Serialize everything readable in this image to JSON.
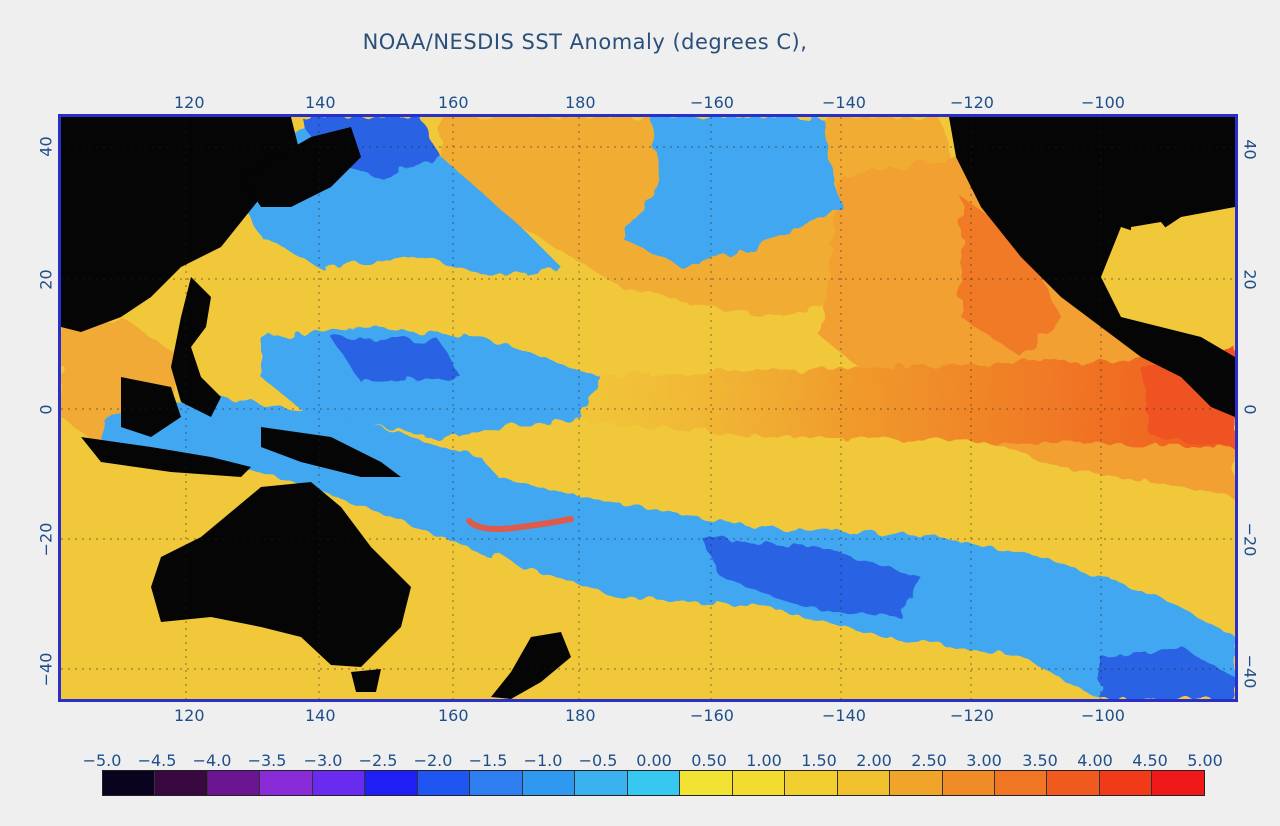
{
  "title": "NOAA/NESDIS SST Anomaly (degrees C),",
  "longitude_ticks": [
    "120",
    "140",
    "160",
    "180",
    "−160",
    "−140",
    "−120",
    "−100"
  ],
  "latitude_ticks": [
    "40",
    "20",
    "0",
    "−20",
    "−40"
  ],
  "legend": {
    "labels": [
      "−5.0",
      "−4.5",
      "−4.0",
      "−3.5",
      "−3.0",
      "−2.5",
      "−2.0",
      "−1.5",
      "−1.0",
      "−0.5",
      "0.00",
      "0.50",
      "1.00",
      "1.50",
      "2.00",
      "2.50",
      "3.00",
      "3.50",
      "4.00",
      "4.50",
      "5.00"
    ],
    "colors": [
      "#0a0320",
      "#3a0840",
      "#6a1690",
      "#8a2bd8",
      "#6a2bf0",
      "#1f1ff5",
      "#1f55f0",
      "#2f7ef0",
      "#2f98f0",
      "#3ab2f0",
      "#36c8f0",
      "#f2e233",
      "#f2dc30",
      "#f1cf2e",
      "#f1c02d",
      "#f0a42a",
      "#f08c28",
      "#f07624",
      "#f05a1f",
      "#f03a18",
      "#f01818"
    ]
  },
  "colors": {
    "land": "#050505",
    "ocean_neutral": "#f1c83a",
    "warm": "#f07a28",
    "hot": "#f05020",
    "cool": "#3fa7f0",
    "cold": "#2a5fe0",
    "frame": "#2b2fc9",
    "label": "#1f4f8a",
    "track": "#e05a4a"
  }
}
